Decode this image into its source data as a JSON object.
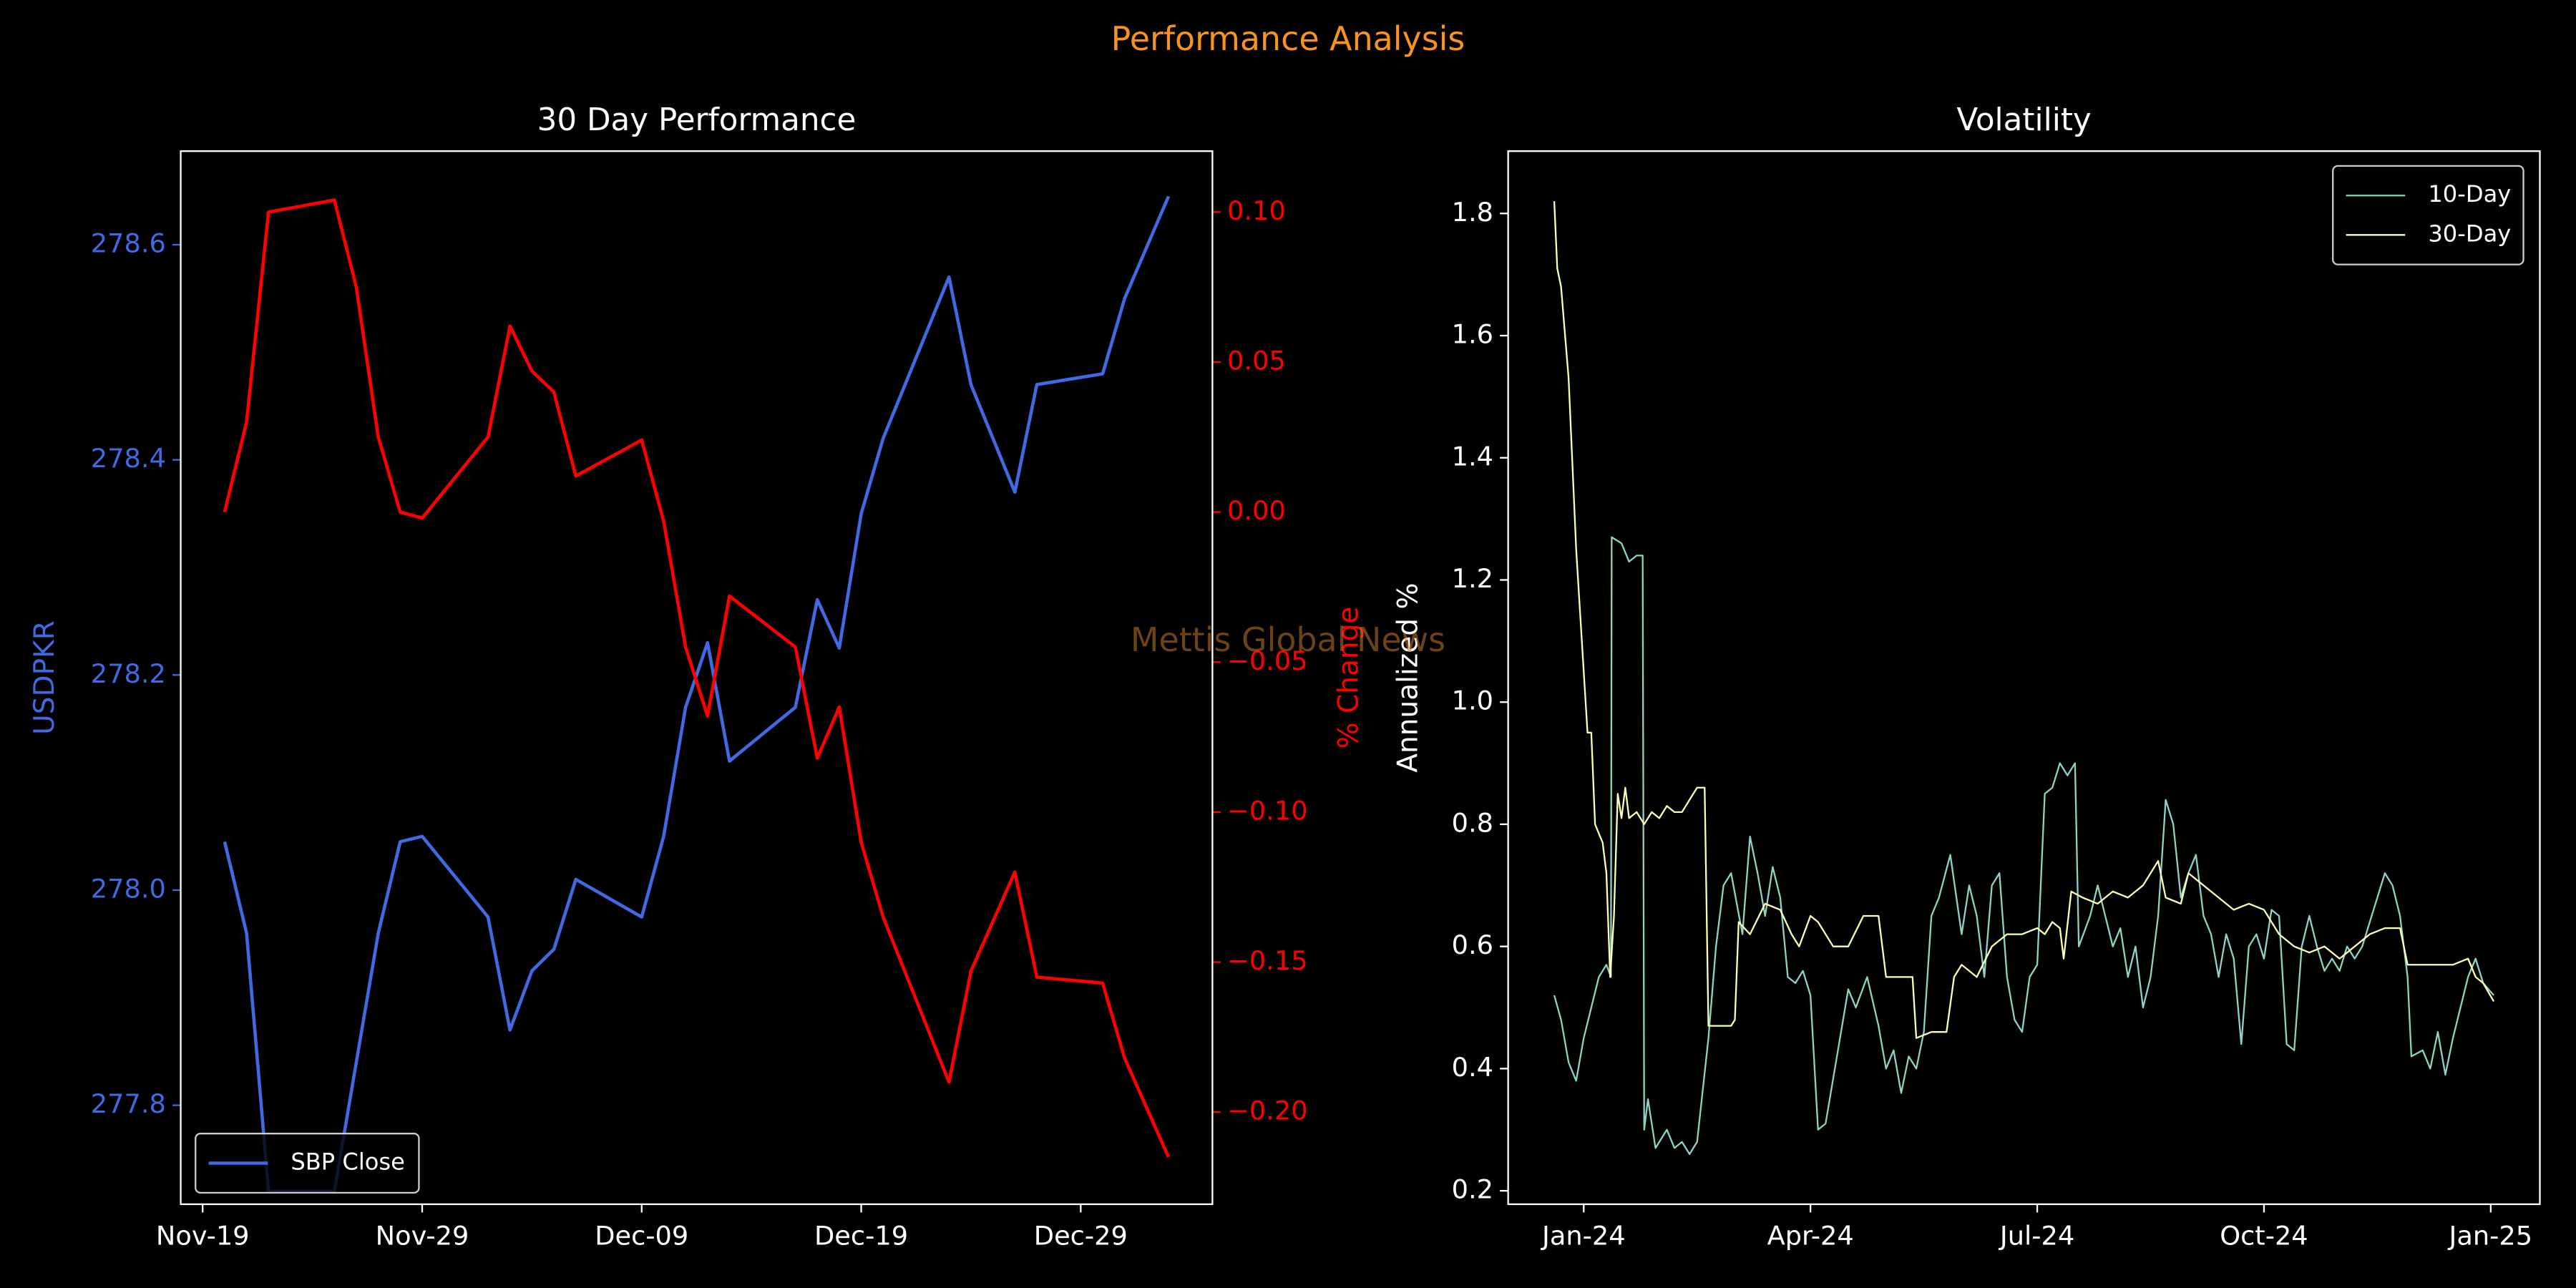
{
  "title": "Performance Analysis",
  "watermark": "Mettis Global News",
  "chart_data": [
    {
      "type": "line",
      "title": "30 Day Performance",
      "ylabel": "USDPKR",
      "y2label": "% Change",
      "legend": "lower left",
      "x": [
        "Nov-20",
        "Nov-21",
        "Nov-22",
        "Nov-25",
        "Nov-26",
        "Nov-27",
        "Nov-28",
        "Nov-29",
        "Dec-02",
        "Dec-03",
        "Dec-04",
        "Dec-05",
        "Dec-06",
        "Dec-09",
        "Dec-10",
        "Dec-11",
        "Dec-12",
        "Dec-13",
        "Dec-16",
        "Dec-17",
        "Dec-18",
        "Dec-19",
        "Dec-20",
        "Dec-23",
        "Dec-24",
        "Dec-26",
        "Dec-27",
        "Dec-30",
        "Dec-31",
        "Jan-02"
      ],
      "xlim": [
        "Nov-18",
        "Jan-04"
      ],
      "xticks": [
        "Nov-19",
        "Nov-29",
        "Dec-09",
        "Dec-19",
        "Dec-29"
      ],
      "ylim": [
        277.708,
        278.687
      ],
      "yticks": [
        277.8,
        {
          "value": 278,
          "label": "278.0"
        },
        278.2,
        278.4,
        278.6
      ],
      "y2lim": [
        -0.2307,
        0.1203
      ],
      "y2ticks": [
        {
          "value": -0.2,
          "label": "−0.20"
        },
        {
          "value": -0.15,
          "label": "−0.15"
        },
        {
          "value": -0.1,
          "label": "−0.10"
        },
        {
          "value": -0.05,
          "label": "−0.05"
        },
        {
          "value": 0,
          "label": "0.00"
        },
        0.05,
        {
          "value": 0.1,
          "label": "0.10"
        }
      ],
      "series": [
        {
          "name": "SBP Close",
          "color": "#4169e1",
          "values": [
            278.045,
            277.96,
            277.72,
            277.72,
            277.84,
            277.96,
            278.045,
            278.05,
            277.975,
            277.87,
            277.925,
            277.945,
            278.01,
            277.975,
            278.05,
            278.17,
            278.23,
            278.12,
            278.17,
            278.27,
            278.225,
            278.35,
            278.42,
            278.57,
            278.47,
            278.37,
            278.47,
            278.48,
            278.55,
            278.645
          ]
        },
        {
          "color": "#ff0000",
          "axis": "y2",
          "values": [
            0.0,
            0.03,
            0.1,
            0.104,
            0.075,
            0.025,
            0.0,
            -0.002,
            0.025,
            0.062,
            0.047,
            0.04,
            0.012,
            0.024,
            -0.003,
            -0.045,
            -0.068,
            -0.028,
            -0.045,
            -0.082,
            -0.065,
            -0.11,
            -0.135,
            -0.19,
            -0.153,
            -0.12,
            -0.155,
            -0.157,
            -0.182,
            -0.215
          ]
        }
      ]
    },
    {
      "type": "line",
      "title": "Volatility",
      "ylabel": "Annualized %",
      "legend": "upper right",
      "xlim": [
        -1,
        12.65
      ],
      "xticks": [
        {
          "value": 0,
          "label": "Jan-24"
        },
        {
          "value": 3,
          "label": "Apr-24"
        },
        {
          "value": 6,
          "label": "Jul-24"
        },
        {
          "value": 9,
          "label": "Oct-24"
        },
        {
          "value": 12,
          "label": "Jan-25"
        }
      ],
      "ylim": [
        0.178,
        1.902
      ],
      "yticks": [
        0.2,
        0.4,
        0.6,
        0.8,
        {
          "value": 1,
          "label": "1.0"
        },
        1.2,
        1.4,
        1.6,
        1.8
      ],
      "series": [
        {
          "name": "10-Day",
          "color": "#8dd3c7",
          "x": [
            -0.39,
            -0.3,
            -0.2,
            -0.1,
            0,
            0.1,
            0.2,
            0.3,
            0.36,
            0.37,
            0.5,
            0.6,
            0.7,
            0.78,
            0.8,
            0.85,
            0.95,
            1.1,
            1.2,
            1.3,
            1.4,
            1.5,
            1.65,
            1.75,
            1.85,
            1.95,
            2.1,
            2.2,
            2.3,
            2.4,
            2.5,
            2.6,
            2.7,
            2.8,
            2.9,
            3.0,
            3.1,
            3.2,
            3.35,
            3.5,
            3.6,
            3.75,
            3.9,
            4.0,
            4.1,
            4.2,
            4.3,
            4.4,
            4.5,
            4.6,
            4.7,
            4.85,
            5.0,
            5.1,
            5.2,
            5.3,
            5.4,
            5.5,
            5.6,
            5.7,
            5.8,
            5.9,
            6.0,
            6.1,
            6.2,
            6.3,
            6.4,
            6.5,
            6.55,
            6.7,
            6.8,
            6.9,
            7.0,
            7.1,
            7.2,
            7.3,
            7.4,
            7.5,
            7.6,
            7.7,
            7.8,
            7.9,
            8.0,
            8.1,
            8.2,
            8.3,
            8.4,
            8.5,
            8.6,
            8.7,
            8.8,
            8.9,
            9.0,
            9.1,
            9.2,
            9.3,
            9.4,
            9.5,
            9.6,
            9.7,
            9.8,
            9.9,
            10.0,
            10.1,
            10.2,
            10.3,
            10.4,
            10.5,
            10.6,
            10.7,
            10.8,
            10.9,
            10.95,
            11.1,
            11.2,
            11.3,
            11.4,
            11.5,
            11.6,
            11.7,
            11.8,
            11.9,
            12.04
          ],
          "values": [
            0.52,
            0.48,
            0.41,
            0.38,
            0.45,
            0.5,
            0.55,
            0.57,
            0.55,
            1.27,
            1.26,
            1.23,
            1.24,
            1.24,
            0.3,
            0.35,
            0.27,
            0.3,
            0.27,
            0.28,
            0.26,
            0.28,
            0.45,
            0.6,
            0.7,
            0.72,
            0.62,
            0.78,
            0.72,
            0.65,
            0.73,
            0.68,
            0.55,
            0.54,
            0.56,
            0.52,
            0.3,
            0.31,
            0.42,
            0.53,
            0.5,
            0.55,
            0.47,
            0.4,
            0.43,
            0.36,
            0.42,
            0.4,
            0.46,
            0.65,
            0.68,
            0.75,
            0.62,
            0.7,
            0.65,
            0.55,
            0.7,
            0.72,
            0.55,
            0.48,
            0.46,
            0.55,
            0.57,
            0.85,
            0.86,
            0.9,
            0.88,
            0.9,
            0.6,
            0.65,
            0.7,
            0.65,
            0.6,
            0.63,
            0.55,
            0.6,
            0.5,
            0.55,
            0.65,
            0.84,
            0.8,
            0.68,
            0.72,
            0.75,
            0.65,
            0.62,
            0.55,
            0.62,
            0.58,
            0.44,
            0.6,
            0.62,
            0.58,
            0.66,
            0.65,
            0.44,
            0.43,
            0.6,
            0.65,
            0.6,
            0.56,
            0.58,
            0.56,
            0.6,
            0.58,
            0.6,
            0.64,
            0.68,
            0.72,
            0.7,
            0.65,
            0.55,
            0.42,
            0.43,
            0.4,
            0.46,
            0.39,
            0.45,
            0.5,
            0.55,
            0.58,
            0.54,
            0.52
          ]
        },
        {
          "name": "30-Day",
          "color": "#ffffb3",
          "x": [
            -0.39,
            -0.35,
            -0.3,
            -0.2,
            -0.1,
            0,
            0.05,
            0.1,
            0.15,
            0.25,
            0.3,
            0.35,
            0.4,
            0.45,
            0.5,
            0.55,
            0.6,
            0.7,
            0.8,
            0.9,
            1.0,
            1.1,
            1.2,
            1.3,
            1.4,
            1.5,
            1.6,
            1.65,
            1.8,
            1.95,
            2.0,
            2.05,
            2.2,
            2.4,
            2.6,
            2.75,
            2.85,
            3.0,
            3.1,
            3.3,
            3.5,
            3.7,
            3.9,
            4.0,
            4.2,
            4.35,
            4.4,
            4.6,
            4.8,
            4.9,
            5.0,
            5.2,
            5.4,
            5.6,
            5.8,
            6.0,
            6.1,
            6.2,
            6.3,
            6.35,
            6.45,
            6.6,
            6.8,
            7.0,
            7.2,
            7.4,
            7.6,
            7.7,
            7.9,
            8.0,
            8.2,
            8.4,
            8.6,
            8.8,
            9.0,
            9.2,
            9.4,
            9.6,
            9.8,
            10.0,
            10.2,
            10.4,
            10.6,
            10.8,
            10.9,
            11.2,
            11.5,
            11.7,
            11.8,
            11.9,
            12.04
          ],
          "values": [
            1.82,
            1.71,
            1.68,
            1.53,
            1.25,
            1.05,
            0.95,
            0.95,
            0.8,
            0.77,
            0.72,
            0.55,
            0.65,
            0.85,
            0.81,
            0.86,
            0.81,
            0.82,
            0.8,
            0.82,
            0.81,
            0.83,
            0.82,
            0.82,
            0.84,
            0.86,
            0.86,
            0.47,
            0.47,
            0.47,
            0.48,
            0.64,
            0.62,
            0.67,
            0.66,
            0.62,
            0.6,
            0.65,
            0.64,
            0.6,
            0.6,
            0.65,
            0.65,
            0.55,
            0.55,
            0.55,
            0.45,
            0.46,
            0.46,
            0.55,
            0.57,
            0.55,
            0.6,
            0.62,
            0.62,
            0.63,
            0.62,
            0.64,
            0.63,
            0.58,
            0.69,
            0.68,
            0.67,
            0.69,
            0.68,
            0.7,
            0.74,
            0.68,
            0.67,
            0.72,
            0.7,
            0.68,
            0.66,
            0.67,
            0.66,
            0.62,
            0.6,
            0.59,
            0.6,
            0.58,
            0.6,
            0.62,
            0.63,
            0.63,
            0.57,
            0.57,
            0.57,
            0.58,
            0.55,
            0.54,
            0.51
          ]
        }
      ]
    }
  ]
}
